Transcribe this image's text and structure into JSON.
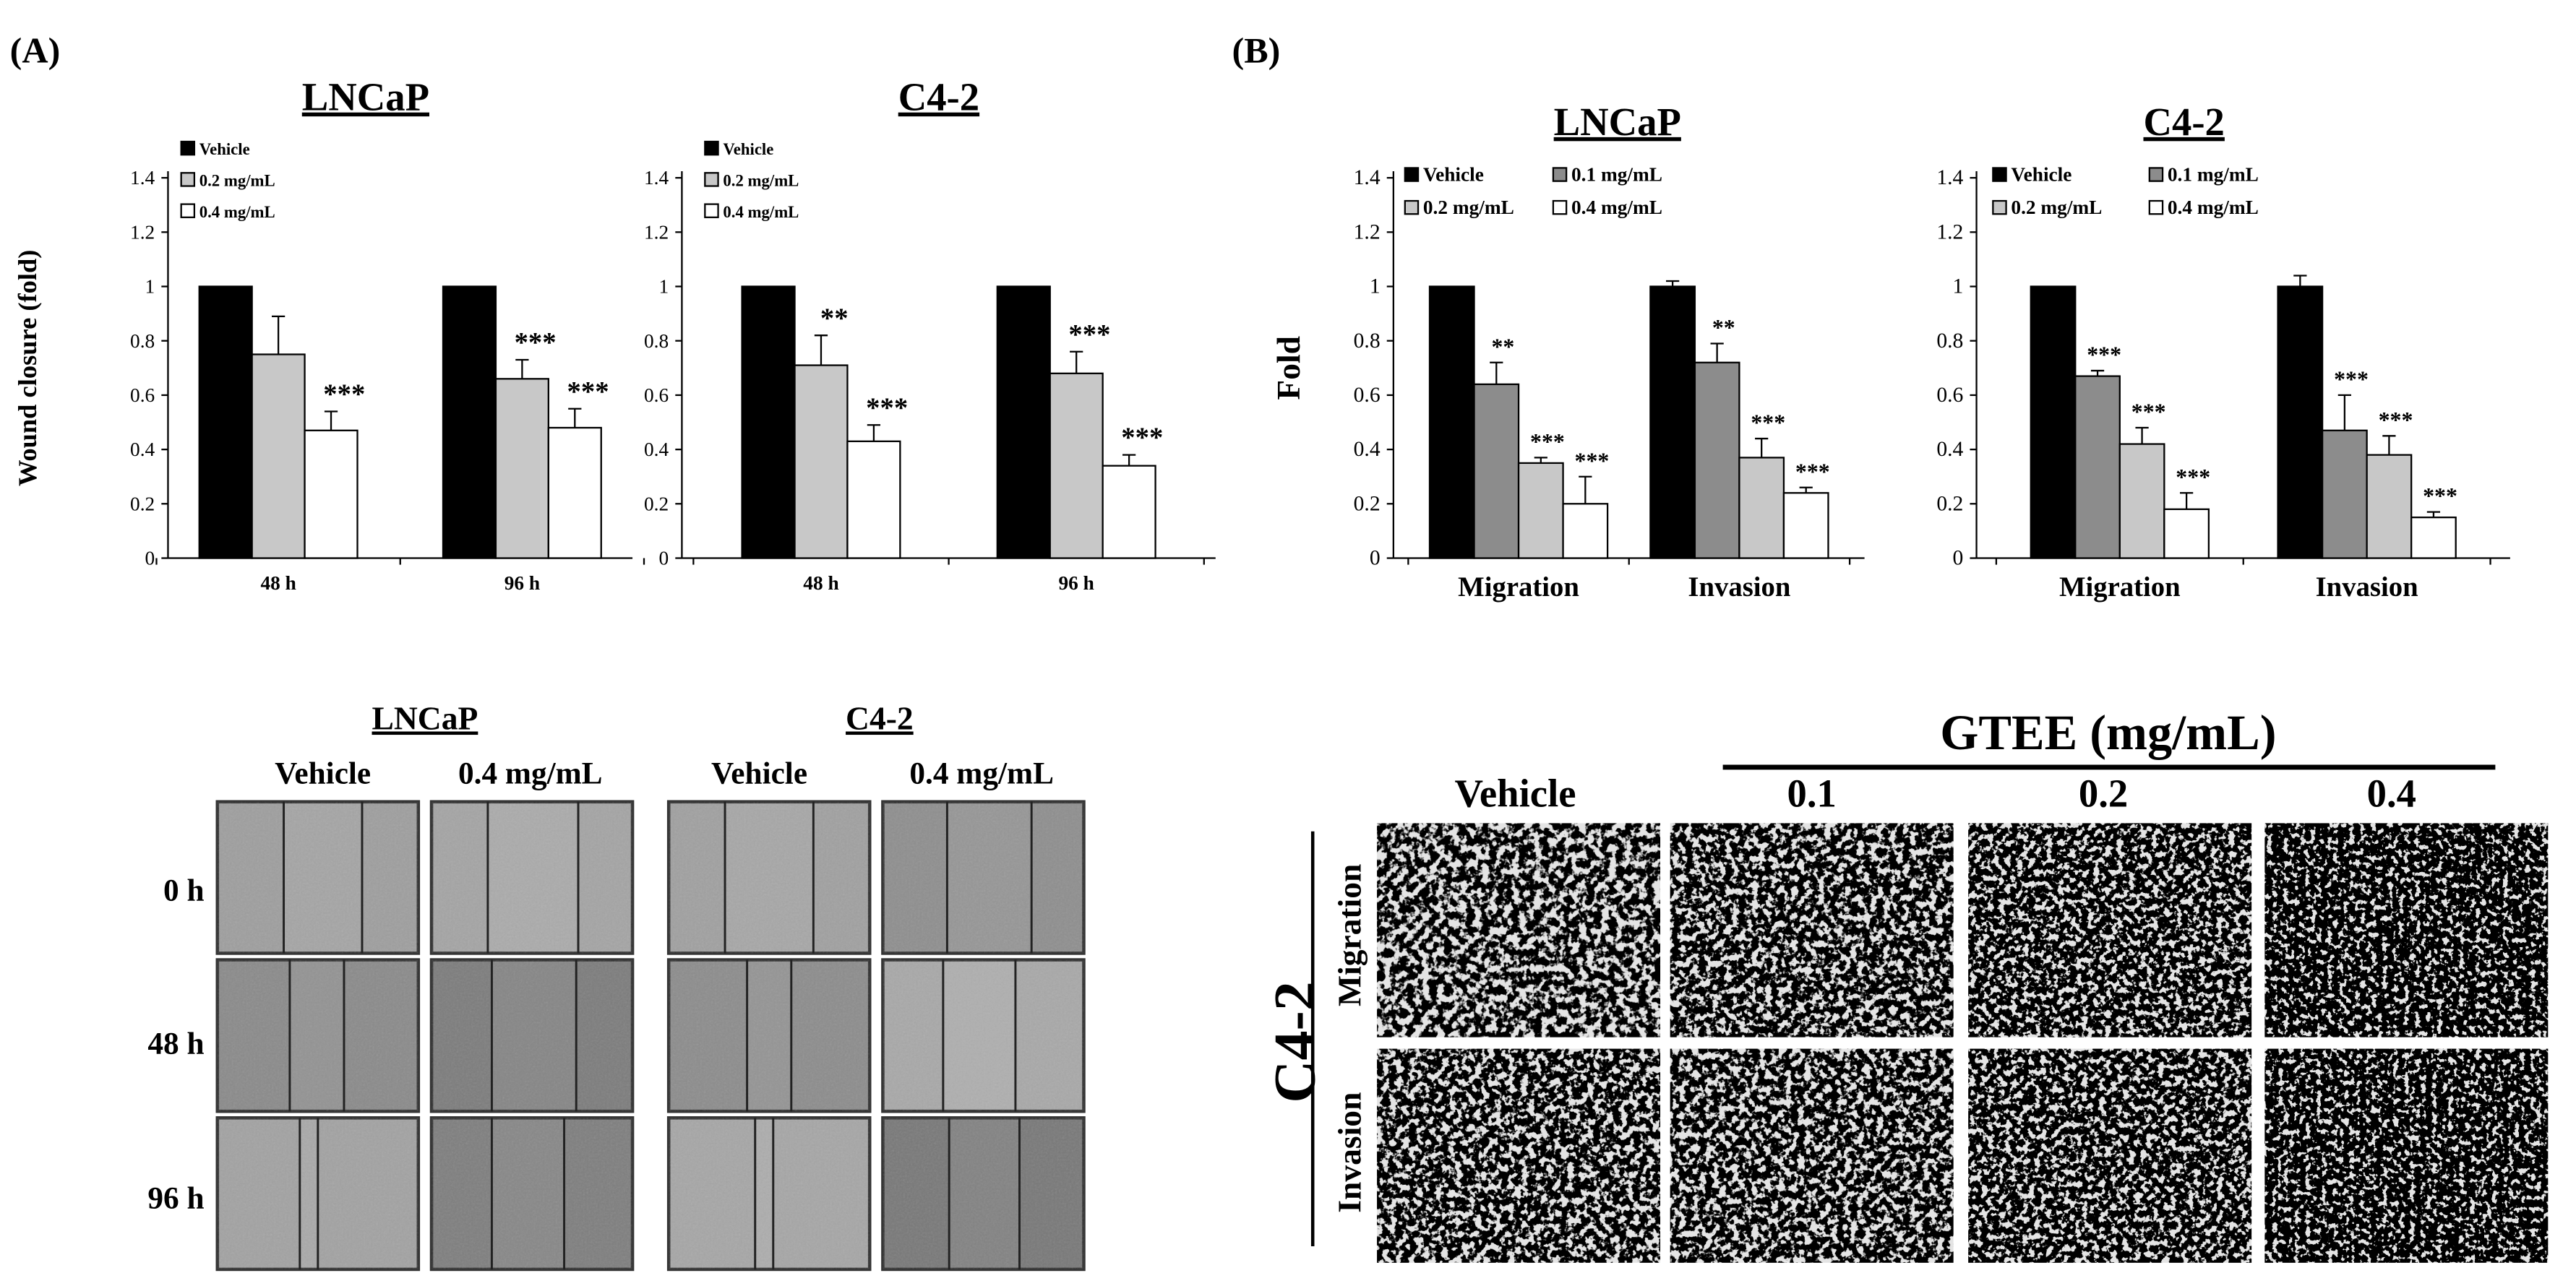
{
  "panel_labels": [
    "(A)",
    "(B)"
  ],
  "charts_A": [
    {
      "title": "LNCaP",
      "ylabel": "Wound closure (fold)",
      "legend": [
        "Vehicle",
        "0.2 mg/mL",
        "0.4 mg/mL"
      ]
    },
    {
      "title": "C4-2",
      "ylabel": "",
      "legend": [
        "Vehicle",
        "0.2 mg/mL",
        "0.4 mg/mL"
      ]
    }
  ],
  "charts_B": [
    {
      "title": "LNCaP",
      "ylabel": "Fold",
      "legend": [
        "Vehicle",
        "0.1 mg/mL",
        "0.2 mg/mL",
        "0.4 mg/mL"
      ]
    },
    {
      "title": "C4-2",
      "ylabel": "",
      "legend": [
        "Vehicle",
        "0.1 mg/mL",
        "0.2 mg/mL",
        "0.4 mg/mL"
      ]
    }
  ],
  "colors": {
    "black": "#000000",
    "dark_gray": "#8c8c8c",
    "light_gray": "#c8c8c8",
    "white": "#ffffff"
  },
  "chart_data": [
    {
      "type": "bar",
      "title": "LNCaP",
      "ylabel": "Wound closure (fold)",
      "categories": [
        "48 h",
        "96 h"
      ],
      "ylim": [
        0,
        1.4
      ],
      "yticks": [
        "0",
        "0.2",
        "0.4",
        "0.6",
        "0.8",
        "1",
        "1.2",
        "1.4"
      ],
      "legend_position": "top-left",
      "grid": false,
      "series": [
        {
          "name": "Vehicle",
          "color": "#000000",
          "values": [
            1.0,
            1.0
          ],
          "errors": [
            0.0,
            0.0
          ],
          "annotations": [
            "",
            ""
          ]
        },
        {
          "name": "0.2 mg/mL",
          "color": "#c8c8c8",
          "values": [
            0.75,
            0.66
          ],
          "errors": [
            0.14,
            0.07
          ],
          "annotations": [
            "",
            "***"
          ]
        },
        {
          "name": "0.4 mg/mL",
          "color": "#ffffff",
          "values": [
            0.47,
            0.48
          ],
          "errors": [
            0.07,
            0.07
          ],
          "annotations": [
            "***",
            "***"
          ]
        }
      ]
    },
    {
      "type": "bar",
      "title": "C4-2",
      "categories": [
        "48 h",
        "96 h"
      ],
      "ylim": [
        0,
        1.4
      ],
      "yticks": [
        "0",
        "0.2",
        "0.4",
        "0.6",
        "0.8",
        "1",
        "1.2",
        "1.4"
      ],
      "legend_position": "top-left",
      "grid": false,
      "series": [
        {
          "name": "Vehicle",
          "color": "#000000",
          "values": [
            1.0,
            1.0
          ],
          "errors": [
            0.0,
            0.0
          ],
          "annotations": [
            "",
            ""
          ]
        },
        {
          "name": "0.2 mg/mL",
          "color": "#c8c8c8",
          "values": [
            0.71,
            0.68
          ],
          "errors": [
            0.11,
            0.08
          ],
          "annotations": [
            "**",
            "***"
          ]
        },
        {
          "name": "0.4 mg/mL",
          "color": "#ffffff",
          "values": [
            0.43,
            0.34
          ],
          "errors": [
            0.06,
            0.04
          ],
          "annotations": [
            "***",
            "***"
          ]
        }
      ]
    },
    {
      "type": "bar",
      "title": "LNCaP",
      "ylabel": "Fold",
      "categories": [
        "Migration",
        "Invasion"
      ],
      "ylim": [
        0,
        1.4
      ],
      "yticks": [
        "0",
        "0.2",
        "0.4",
        "0.6",
        "0.8",
        "1",
        "1.2",
        "1.4"
      ],
      "legend_position": "top",
      "grid": false,
      "series": [
        {
          "name": "Vehicle",
          "color": "#000000",
          "values": [
            1.0,
            1.0
          ],
          "errors": [
            0.0,
            0.02
          ],
          "annotations": [
            "",
            ""
          ]
        },
        {
          "name": "0.1 mg/mL",
          "color": "#8c8c8c",
          "values": [
            0.64,
            0.72
          ],
          "errors": [
            0.08,
            0.07
          ],
          "annotations": [
            "**",
            "**"
          ]
        },
        {
          "name": "0.2 mg/mL",
          "color": "#c8c8c8",
          "values": [
            0.35,
            0.37
          ],
          "errors": [
            0.02,
            0.07
          ],
          "annotations": [
            "***",
            "***"
          ]
        },
        {
          "name": "0.4 mg/mL",
          "color": "#ffffff",
          "values": [
            0.2,
            0.24
          ],
          "errors": [
            0.1,
            0.02
          ],
          "annotations": [
            "***",
            "***"
          ]
        }
      ]
    },
    {
      "type": "bar",
      "title": "C4-2",
      "categories": [
        "Migration",
        "Invasion"
      ],
      "ylim": [
        0,
        1.4
      ],
      "yticks": [
        "0",
        "0.2",
        "0.4",
        "0.6",
        "0.8",
        "1",
        "1.2",
        "1.4"
      ],
      "legend_position": "top",
      "grid": false,
      "series": [
        {
          "name": "Vehicle",
          "color": "#000000",
          "values": [
            1.0,
            1.0
          ],
          "errors": [
            0.0,
            0.04
          ],
          "annotations": [
            "",
            ""
          ]
        },
        {
          "name": "0.1 mg/mL",
          "color": "#8c8c8c",
          "values": [
            0.67,
            0.47
          ],
          "errors": [
            0.02,
            0.13
          ],
          "annotations": [
            "***",
            "***"
          ]
        },
        {
          "name": "0.2 mg/mL",
          "color": "#c8c8c8",
          "values": [
            0.42,
            0.38
          ],
          "errors": [
            0.06,
            0.07
          ],
          "annotations": [
            "***",
            "***"
          ]
        },
        {
          "name": "0.4 mg/mL",
          "color": "#ffffff",
          "values": [
            0.18,
            0.15
          ],
          "errors": [
            0.06,
            0.02
          ],
          "annotations": [
            "***",
            "***"
          ]
        }
      ]
    }
  ],
  "wound_images": {
    "groups": [
      {
        "title": "LNCaP",
        "columns": [
          "Vehicle",
          "0.4 mg/mL"
        ]
      },
      {
        "title": "C4-2",
        "columns": [
          "Vehicle",
          "0.4 mg/mL"
        ]
      }
    ],
    "rows": [
      "0 h",
      "48 h",
      "96 h"
    ]
  },
  "transwell_images": {
    "header": "GTEE (mg/mL)",
    "columns": [
      "Vehicle",
      "0.1",
      "0.2",
      "0.4"
    ],
    "cell_line": "C4-2",
    "rows": [
      "Migration",
      "Invasion"
    ]
  }
}
